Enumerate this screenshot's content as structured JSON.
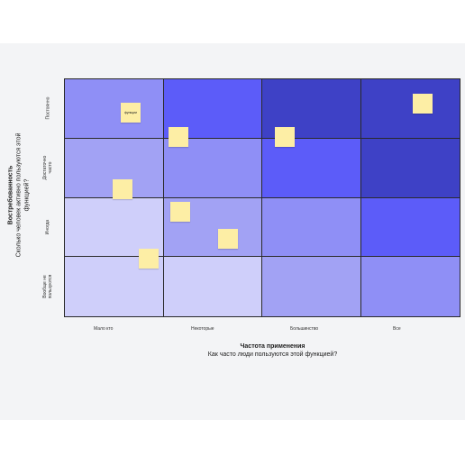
{
  "rows": [
    {
      "label": "Постоянно",
      "colors": [
        "#8f8ff6",
        "#5c5cf9",
        "#3e41c6",
        "#3e41c6"
      ]
    },
    {
      "label": "Достаточно часто",
      "colors": [
        "#a2a2f4",
        "#8f8ff6",
        "#5c5cf9",
        "#3e41c6"
      ]
    },
    {
      "label": "Иногда",
      "colors": [
        "#cfcffa",
        "#a2a2f4",
        "#8f8ff6",
        "#5c5cf9"
      ]
    },
    {
      "label": "Вообще не пользуются",
      "colors": [
        "#cfcffa",
        "#cfcffa",
        "#a2a2f4",
        "#8f8ff6"
      ]
    }
  ],
  "columns": [
    {
      "label": "Мало кто"
    },
    {
      "label": "Некоторые"
    },
    {
      "label": "Большинство"
    },
    {
      "label": "Все"
    }
  ],
  "axes": {
    "x_title": "Частота применения",
    "x_subtitle": "Как часто люди пользуются этой функцией?",
    "y_title": "Востребованность",
    "y_subtitle": "Сколько человек активно пользуются этой функцией?"
  },
  "stickies": [
    {
      "text": "функции"
    },
    {
      "text": ""
    },
    {
      "text": ""
    },
    {
      "text": ""
    },
    {
      "text": ""
    },
    {
      "text": ""
    },
    {
      "text": ""
    },
    {
      "text": ""
    }
  ],
  "colors": {
    "sticky": "#fdeea5",
    "board": "#f3f4f6",
    "grid_line": "#2a2a2a"
  }
}
